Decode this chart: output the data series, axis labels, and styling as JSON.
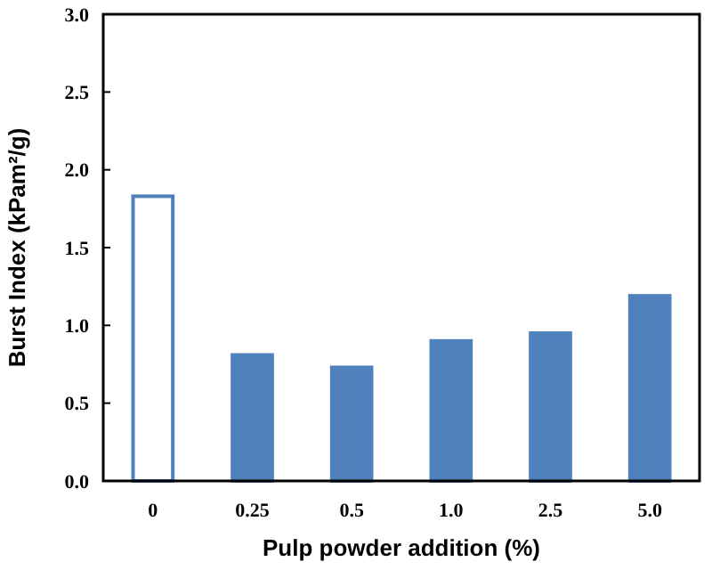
{
  "chart_data": {
    "type": "bar",
    "xlabel": "Pulp powder addition (%)",
    "ylabel": "Burst Index (kPam²/g)",
    "categories": [
      "0",
      "0.25",
      "0.5",
      "1.0",
      "2.5",
      "5.0"
    ],
    "values": [
      1.83,
      0.81,
      0.73,
      0.9,
      0.95,
      1.19
    ],
    "colors": [
      "#ffffff",
      "#4f81bd",
      "#4f81bd",
      "#4f81bd",
      "#4f81bd",
      "#4f81bd"
    ],
    "ylim": [
      0,
      3
    ],
    "yticks": [
      {
        "value": 0,
        "label": "0.0"
      },
      {
        "value": 0.5,
        "label": "0.5"
      },
      {
        "value": 1,
        "label": "1.0"
      },
      {
        "value": 1.5,
        "label": "1.5"
      },
      {
        "value": 2,
        "label": "2.0"
      },
      {
        "value": 2.5,
        "label": "2.5"
      },
      {
        "value": 3,
        "label": "3.0"
      }
    ],
    "grid": false
  }
}
